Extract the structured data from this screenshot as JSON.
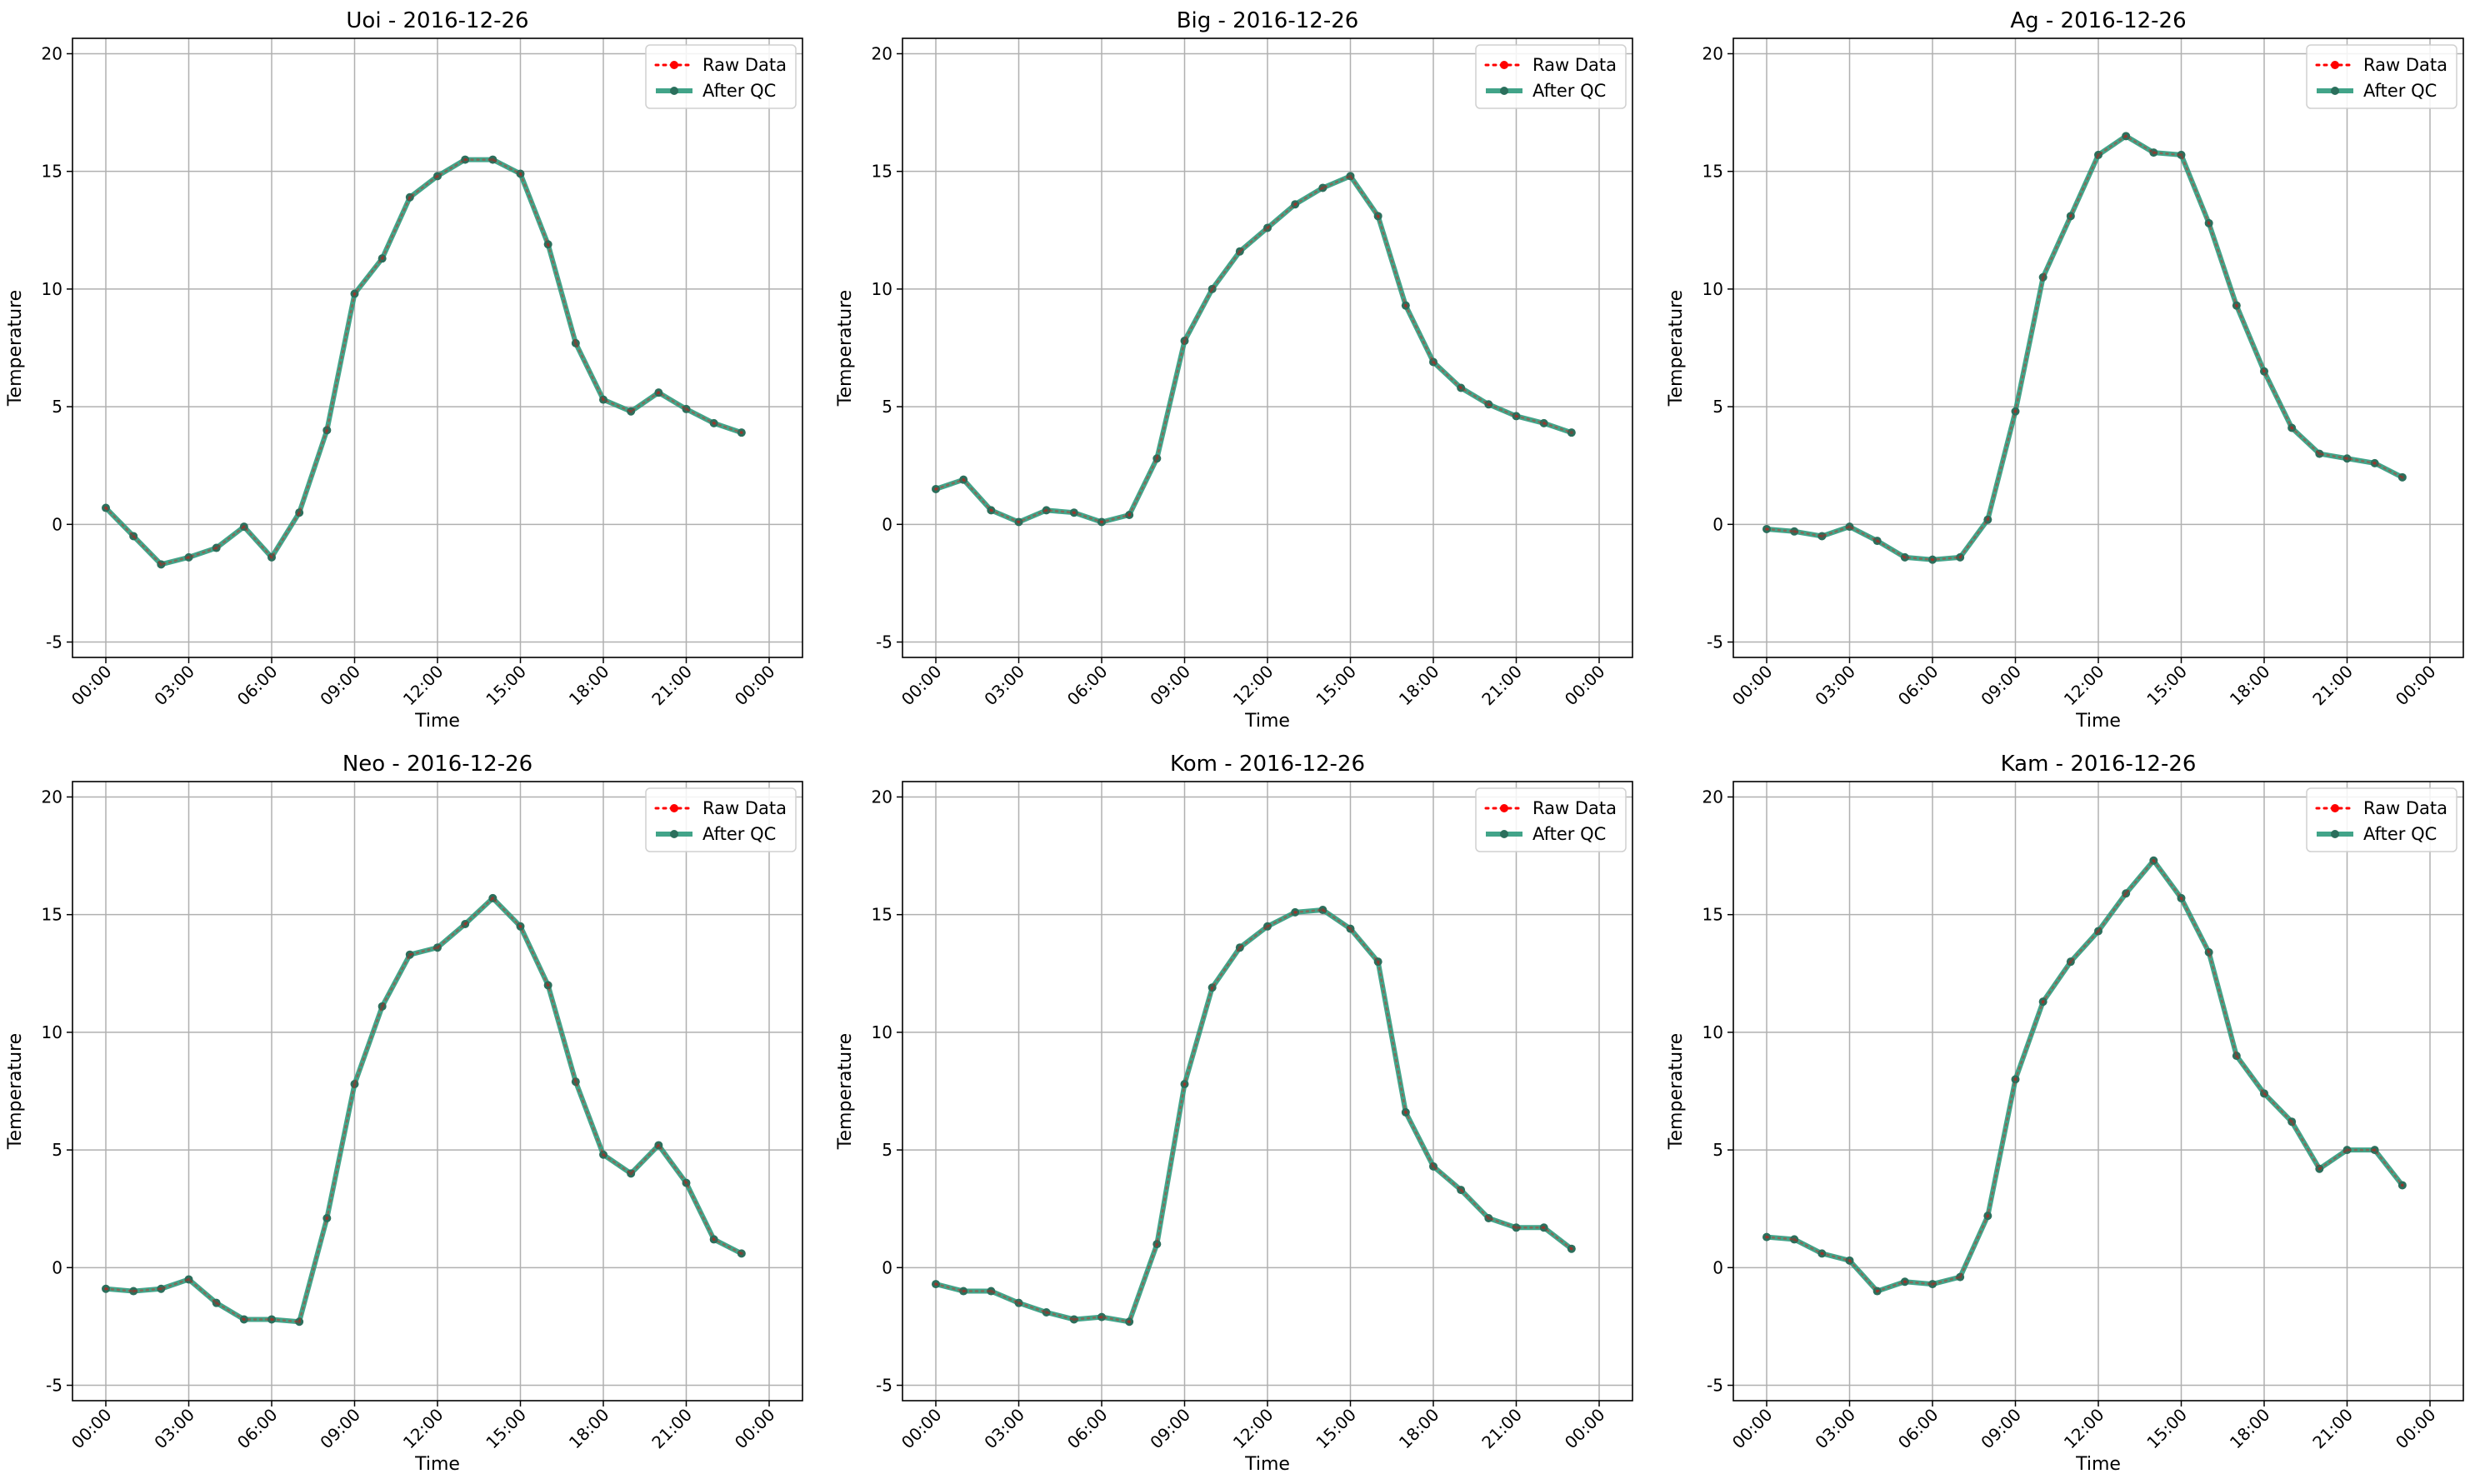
{
  "legend": {
    "raw_label": "Raw Data",
    "qc_label": "After QC",
    "placement": "upper right"
  },
  "colors": {
    "raw": "#ff0000",
    "qc": "#2e9b7d",
    "qc_marker": "#2b6f5c",
    "grid": "#b0b0b0"
  },
  "chart_data": [
    {
      "type": "line",
      "title": "Uoi - 2016-12-26",
      "xlabel": "Time",
      "ylabel": "Temperature",
      "x_ticks": [
        "00:00",
        "03:00",
        "06:00",
        "09:00",
        "12:00",
        "15:00",
        "18:00",
        "21:00",
        "00:00"
      ],
      "y_ticks": [
        -5,
        0,
        5,
        10,
        15,
        20
      ],
      "xlim": [
        0,
        24
      ],
      "ylim": [
        -5,
        20
      ],
      "grid": true,
      "x_hours": [
        0,
        1,
        2,
        3,
        4,
        5,
        6,
        7,
        8,
        9,
        10,
        11,
        12,
        13,
        14,
        15,
        16,
        17,
        18,
        19,
        20,
        21,
        22,
        23
      ],
      "series": [
        {
          "name": "Raw Data",
          "values": [
            0.7,
            -0.5,
            -1.7,
            -1.4,
            -1.0,
            -0.1,
            -1.4,
            0.5,
            4.0,
            9.8,
            11.3,
            13.9,
            14.8,
            15.5,
            15.5,
            14.9,
            11.9,
            7.7,
            5.3,
            4.8,
            5.6,
            4.9,
            4.3,
            3.9
          ]
        },
        {
          "name": "After QC",
          "values": [
            0.7,
            -0.5,
            -1.7,
            -1.4,
            -1.0,
            -0.1,
            -1.4,
            0.5,
            4.0,
            9.8,
            11.3,
            13.9,
            14.8,
            15.5,
            15.5,
            14.9,
            11.9,
            7.7,
            5.3,
            4.8,
            5.6,
            4.9,
            4.3,
            3.9
          ]
        }
      ]
    },
    {
      "type": "line",
      "title": "Big - 2016-12-26",
      "xlabel": "Time",
      "ylabel": "Temperature",
      "x_ticks": [
        "00:00",
        "03:00",
        "06:00",
        "09:00",
        "12:00",
        "15:00",
        "18:00",
        "21:00",
        "00:00"
      ],
      "y_ticks": [
        -5,
        0,
        5,
        10,
        15,
        20
      ],
      "xlim": [
        0,
        24
      ],
      "ylim": [
        -5,
        20
      ],
      "grid": true,
      "x_hours": [
        0,
        1,
        2,
        3,
        4,
        5,
        6,
        7,
        8,
        9,
        10,
        11,
        12,
        13,
        14,
        15,
        16,
        17,
        18,
        19,
        20,
        21,
        22,
        23
      ],
      "series": [
        {
          "name": "Raw Data",
          "values": [
            1.5,
            1.9,
            0.6,
            0.1,
            0.6,
            0.5,
            0.1,
            0.4,
            2.8,
            7.8,
            10.0,
            11.6,
            12.6,
            13.6,
            14.3,
            14.8,
            13.1,
            9.3,
            6.9,
            5.8,
            5.1,
            4.6,
            4.3,
            3.9
          ]
        },
        {
          "name": "After QC",
          "values": [
            1.5,
            1.9,
            0.6,
            0.1,
            0.6,
            0.5,
            0.1,
            0.4,
            2.8,
            7.8,
            10.0,
            11.6,
            12.6,
            13.6,
            14.3,
            14.8,
            13.1,
            9.3,
            6.9,
            5.8,
            5.1,
            4.6,
            4.3,
            3.9
          ]
        }
      ]
    },
    {
      "type": "line",
      "title": "Ag - 2016-12-26",
      "xlabel": "Time",
      "ylabel": "Temperature",
      "x_ticks": [
        "00:00",
        "03:00",
        "06:00",
        "09:00",
        "12:00",
        "15:00",
        "18:00",
        "21:00",
        "00:00"
      ],
      "y_ticks": [
        -5,
        0,
        5,
        10,
        15,
        20
      ],
      "xlim": [
        0,
        24
      ],
      "ylim": [
        -5,
        20
      ],
      "grid": true,
      "x_hours": [
        0,
        1,
        2,
        3,
        4,
        5,
        6,
        7,
        8,
        9,
        10,
        11,
        12,
        13,
        14,
        15,
        16,
        17,
        18,
        19,
        20,
        21,
        22,
        23
      ],
      "series": [
        {
          "name": "Raw Data",
          "values": [
            -0.2,
            -0.3,
            -0.5,
            -0.1,
            -0.7,
            -1.4,
            -1.5,
            -1.4,
            0.2,
            4.8,
            10.5,
            13.1,
            15.7,
            16.5,
            15.8,
            15.7,
            12.8,
            9.3,
            6.5,
            4.1,
            3.0,
            2.8,
            2.6,
            2.0
          ]
        },
        {
          "name": "After QC",
          "values": [
            -0.2,
            -0.3,
            -0.5,
            -0.1,
            -0.7,
            -1.4,
            -1.5,
            -1.4,
            0.2,
            4.8,
            10.5,
            13.1,
            15.7,
            16.5,
            15.8,
            15.7,
            12.8,
            9.3,
            6.5,
            4.1,
            3.0,
            2.8,
            2.6,
            2.0
          ]
        }
      ]
    },
    {
      "type": "line",
      "title": "Neo - 2016-12-26",
      "xlabel": "Time",
      "ylabel": "Temperature",
      "x_ticks": [
        "00:00",
        "03:00",
        "06:00",
        "09:00",
        "12:00",
        "15:00",
        "18:00",
        "21:00",
        "00:00"
      ],
      "y_ticks": [
        -5,
        0,
        5,
        10,
        15,
        20
      ],
      "xlim": [
        0,
        24
      ],
      "ylim": [
        -5,
        20
      ],
      "grid": true,
      "x_hours": [
        0,
        1,
        2,
        3,
        4,
        5,
        6,
        7,
        8,
        9,
        10,
        11,
        12,
        13,
        14,
        15,
        16,
        17,
        18,
        19,
        20,
        21,
        22,
        23
      ],
      "series": [
        {
          "name": "Raw Data",
          "values": [
            -0.9,
            -1.0,
            -0.9,
            -0.5,
            -1.5,
            -2.2,
            -2.2,
            -2.3,
            2.1,
            7.8,
            11.1,
            13.3,
            13.6,
            14.6,
            15.7,
            14.5,
            12.0,
            7.9,
            4.8,
            4.0,
            5.2,
            3.6,
            1.2,
            0.6
          ]
        },
        {
          "name": "After QC",
          "values": [
            -0.9,
            -1.0,
            -0.9,
            -0.5,
            -1.5,
            -2.2,
            -2.2,
            -2.3,
            2.1,
            7.8,
            11.1,
            13.3,
            13.6,
            14.6,
            15.7,
            14.5,
            12.0,
            7.9,
            4.8,
            4.0,
            5.2,
            3.6,
            1.2,
            0.6
          ]
        }
      ]
    },
    {
      "type": "line",
      "title": "Kom - 2016-12-26",
      "xlabel": "Time",
      "ylabel": "Temperature",
      "x_ticks": [
        "00:00",
        "03:00",
        "06:00",
        "09:00",
        "12:00",
        "15:00",
        "18:00",
        "21:00",
        "00:00"
      ],
      "y_ticks": [
        -5,
        0,
        5,
        10,
        15,
        20
      ],
      "xlim": [
        0,
        24
      ],
      "ylim": [
        -5,
        20
      ],
      "grid": true,
      "x_hours": [
        0,
        1,
        2,
        3,
        4,
        5,
        6,
        7,
        8,
        9,
        10,
        11,
        12,
        13,
        14,
        15,
        16,
        17,
        18,
        19,
        20,
        21,
        22,
        23
      ],
      "series": [
        {
          "name": "Raw Data",
          "values": [
            -0.7,
            -1.0,
            -1.0,
            -1.5,
            -1.9,
            -2.2,
            -2.1,
            -2.3,
            1.0,
            7.8,
            11.9,
            13.6,
            14.5,
            15.1,
            15.2,
            14.4,
            13.0,
            6.6,
            4.3,
            3.3,
            2.1,
            1.7,
            1.7,
            0.8
          ]
        },
        {
          "name": "After QC",
          "values": [
            -0.7,
            -1.0,
            -1.0,
            -1.5,
            -1.9,
            -2.2,
            -2.1,
            -2.3,
            1.0,
            7.8,
            11.9,
            13.6,
            14.5,
            15.1,
            15.2,
            14.4,
            13.0,
            6.6,
            4.3,
            3.3,
            2.1,
            1.7,
            1.7,
            0.8
          ]
        }
      ]
    },
    {
      "type": "line",
      "title": "Kam - 2016-12-26",
      "xlabel": "Time",
      "ylabel": "Temperature",
      "x_ticks": [
        "00:00",
        "03:00",
        "06:00",
        "09:00",
        "12:00",
        "15:00",
        "18:00",
        "21:00",
        "00:00"
      ],
      "y_ticks": [
        -5,
        0,
        5,
        10,
        15,
        20
      ],
      "xlim": [
        0,
        24
      ],
      "ylim": [
        -5,
        20
      ],
      "grid": true,
      "x_hours": [
        0,
        1,
        2,
        3,
        4,
        5,
        6,
        7,
        8,
        9,
        10,
        11,
        12,
        13,
        14,
        15,
        16,
        17,
        18,
        19,
        20,
        21,
        22,
        23
      ],
      "series": [
        {
          "name": "Raw Data",
          "values": [
            1.3,
            1.2,
            0.6,
            0.3,
            -1.0,
            -0.6,
            -0.7,
            -0.4,
            2.2,
            8.0,
            11.3,
            13.0,
            14.3,
            15.9,
            17.3,
            15.7,
            13.4,
            9.0,
            7.4,
            6.2,
            4.2,
            5.0,
            5.0,
            3.5
          ]
        },
        {
          "name": "After QC",
          "values": [
            1.3,
            1.2,
            0.6,
            0.3,
            -1.0,
            -0.6,
            -0.7,
            -0.4,
            2.2,
            8.0,
            11.3,
            13.0,
            14.3,
            15.9,
            17.3,
            15.7,
            13.4,
            9.0,
            7.4,
            6.2,
            4.2,
            5.0,
            5.0,
            3.5
          ]
        }
      ]
    }
  ]
}
